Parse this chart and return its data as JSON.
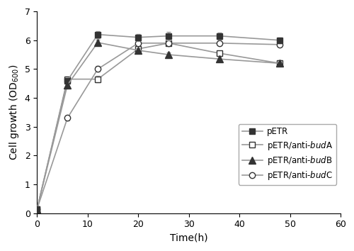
{
  "time": [
    0,
    6,
    12,
    20,
    26,
    36,
    48
  ],
  "pETR_y": [
    0.15,
    4.6,
    6.2,
    6.1,
    6.15,
    6.15,
    6.0
  ],
  "pETR_err": [
    0.02,
    0.05,
    0.12,
    0.12,
    0.15,
    0.12,
    0.1
  ],
  "budA_y": [
    0.15,
    4.65,
    4.65,
    5.7,
    5.9,
    5.55,
    5.2
  ],
  "budA_err": [
    0.02,
    0.1,
    0.12,
    0.12,
    0.08,
    0.08,
    0.1
  ],
  "budB_y": [
    0.15,
    4.45,
    5.92,
    5.65,
    5.5,
    5.35,
    5.2
  ],
  "budB_err": [
    0.02,
    0.05,
    0.1,
    0.08,
    0.08,
    0.08,
    0.06
  ],
  "budC_y": [
    0.15,
    3.3,
    5.0,
    5.9,
    5.9,
    5.9,
    5.85
  ],
  "budC_err": [
    0.02,
    0.08,
    0.1,
    0.1,
    0.08,
    0.08,
    0.08
  ],
  "line_color": "#999999",
  "marker_dark": "#333333",
  "marker_light": "#ffffff",
  "xlim": [
    0,
    60
  ],
  "ylim": [
    0,
    7
  ],
  "xticks": [
    0,
    10,
    20,
    30,
    40,
    50,
    60
  ],
  "yticks": [
    0,
    1,
    2,
    3,
    4,
    5,
    6,
    7
  ],
  "xlabel": "Time(h)",
  "legend_labels": [
    "pETR",
    "pETR/anti-budA",
    "pETR/anti-budB",
    "pETR/anti-budC"
  ]
}
